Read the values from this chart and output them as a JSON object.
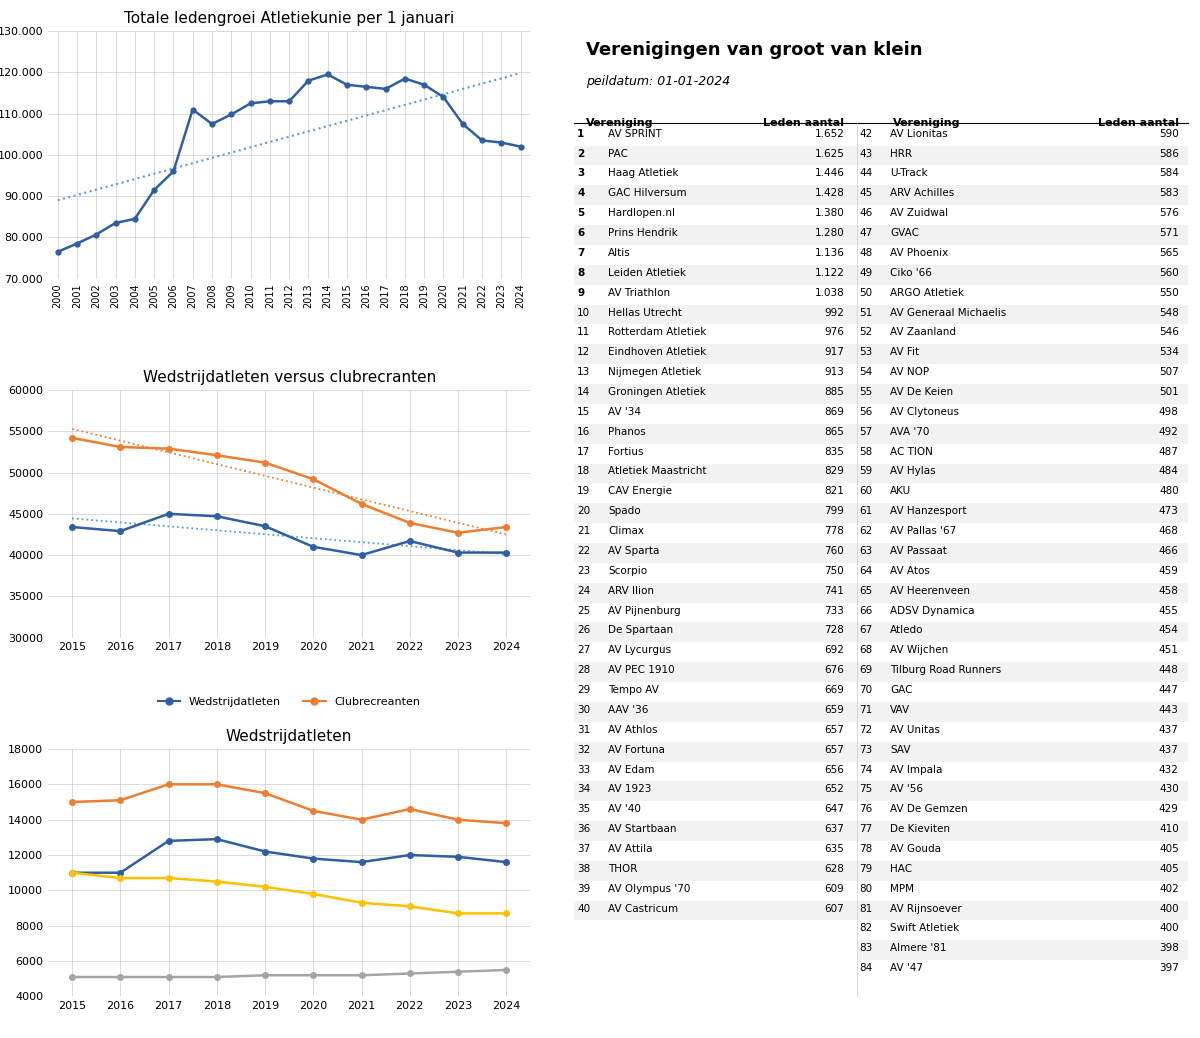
{
  "chart1_title": "Totale ledengroei Atletiekunie per 1 januari",
  "chart1_years": [
    2000,
    2001,
    2002,
    2003,
    2004,
    2005,
    2006,
    2007,
    2008,
    2009,
    2010,
    2011,
    2012,
    2013,
    2014,
    2015,
    2016,
    2017,
    2018,
    2019,
    2020,
    2021,
    2022,
    2023,
    2024
  ],
  "chart1_values": [
    76500,
    78500,
    80700,
    83500,
    84500,
    91500,
    96000,
    111000,
    107500,
    109800,
    112500,
    113000,
    113000,
    118000,
    119500,
    117000,
    116500,
    116000,
    118500,
    117000,
    114000,
    107500,
    103500,
    103000,
    102000
  ],
  "chart1_ylim": [
    70000,
    130000
  ],
  "chart1_yticks": [
    70000,
    80000,
    90000,
    100000,
    110000,
    120000,
    130000
  ],
  "chart1_color": "#2E5FA3",
  "chart1_trend_color": "#5B9BD5",
  "chart2_title": "Wedstrijdatleten versus clubrecranten",
  "chart2_years": [
    2015,
    2016,
    2017,
    2018,
    2019,
    2020,
    2021,
    2022,
    2023,
    2024
  ],
  "chart2_wedstrijd": [
    43400,
    42900,
    45000,
    44700,
    43500,
    41000,
    40000,
    41700,
    40300,
    40300
  ],
  "chart2_club": [
    54200,
    53100,
    52900,
    52100,
    51200,
    49200,
    46200,
    43900,
    42700,
    43400
  ],
  "chart2_ylim": [
    30000,
    60000
  ],
  "chart2_yticks": [
    30000,
    35000,
    40000,
    45000,
    50000,
    55000,
    60000
  ],
  "chart2_color_wedstrijd": "#2E5FA3",
  "chart2_color_club": "#ED7D31",
  "chart2_trend_color_wedstrijd": "#5B9BD5",
  "chart2_trend_color_club": "#ED7D31",
  "chart3_title": "Wedstrijdatleten",
  "chart3_years": [
    2015,
    2016,
    2017,
    2018,
    2019,
    2020,
    2021,
    2022,
    2023,
    2024
  ],
  "chart3_pupillen": [
    11000,
    11000,
    12800,
    12900,
    12200,
    11800,
    11600,
    12000,
    11900,
    11600
  ],
  "chart3_junioren": [
    15000,
    15100,
    16000,
    16000,
    15500,
    14500,
    14000,
    14600,
    14000,
    13800
  ],
  "chart3_senioren": [
    5100,
    5100,
    5100,
    5100,
    5200,
    5200,
    5200,
    5300,
    5400,
    5500
  ],
  "chart3_masters": [
    11000,
    10700,
    10700,
    10500,
    10200,
    9800,
    9300,
    9100,
    8700,
    8700
  ],
  "chart3_ylim": [
    4000,
    18000
  ],
  "chart3_yticks": [
    4000,
    6000,
    8000,
    10000,
    12000,
    14000,
    16000,
    18000
  ],
  "chart3_color_pupillen": "#2E5FA3",
  "chart3_color_junioren": "#ED7D31",
  "chart3_color_senioren": "#A5A5A5",
  "chart3_color_masters": "#FFC000",
  "table_title": "Verenigingen van groot van klein",
  "table_subtitle": "peildatum: 01-01-2024",
  "table_col1_num": [
    1,
    2,
    3,
    4,
    5,
    6,
    7,
    8,
    9,
    10,
    11,
    12,
    13,
    14,
    15,
    16,
    17,
    18,
    19,
    20,
    21,
    22,
    23,
    24,
    25,
    26,
    27,
    28,
    29,
    30,
    31,
    32,
    33,
    34,
    35,
    36,
    37,
    38,
    39,
    40
  ],
  "table_col1_name": [
    "AV SPRINT",
    "PAC",
    "Haag Atletiek",
    "GAC Hilversum",
    "Hardlopen.nl",
    "Prins Hendrik",
    "Altis",
    "Leiden Atletiek",
    "AV Triathlon",
    "Hellas Utrecht",
    "Rotterdam Atletiek",
    "Eindhoven Atletiek",
    "Nijmegen Atletiek",
    "Groningen Atletiek",
    "AV '34",
    "Phanos",
    "Fortius",
    "Atletiek Maastricht",
    "CAV Energie",
    "Spado",
    "Climax",
    "AV Sparta",
    "Scorpio",
    "ARV Ilion",
    "AV Pijnenburg",
    "De Spartaan",
    "AV Lycurgus",
    "AV PEC 1910",
    "Tempo AV",
    "AAV '36",
    "AV Athlos",
    "AV Fortuna",
    "AV Edam",
    "AV 1923",
    "AV '40",
    "AV Startbaan",
    "AV Attila",
    "THOR",
    "AV Olympus '70",
    "AV Castricum"
  ],
  "table_col1_val": [
    "1.652",
    "1.625",
    "1.446",
    "1.428",
    "1.380",
    "1.280",
    "1.136",
    "1.122",
    "1.038",
    "992",
    "976",
    "917",
    "913",
    "885",
    "869",
    "865",
    "835",
    "829",
    "821",
    "799",
    "778",
    "760",
    "750",
    "741",
    "733",
    "728",
    "692",
    "676",
    "669",
    "659",
    "657",
    "657",
    "656",
    "652",
    "647",
    "637",
    "635",
    "628",
    "609",
    "607"
  ],
  "table_col2_num": [
    42,
    43,
    44,
    45,
    46,
    47,
    48,
    49,
    50,
    51,
    52,
    53,
    54,
    55,
    56,
    57,
    58,
    59,
    60,
    61,
    62,
    63,
    64,
    65,
    66,
    67,
    68,
    69,
    70,
    71,
    72,
    73,
    74,
    75,
    76,
    77,
    78,
    79,
    80,
    81,
    82,
    83,
    84
  ],
  "table_col2_name": [
    "AV Lionitas",
    "HRR",
    "U-Track",
    "ARV Achilles",
    "AV Zuidwal",
    "GVAC",
    "AV Phoenix",
    "Ciko '66",
    "ARGO Atletiek",
    "AV Generaal Michaelis",
    "AV Zaanland",
    "AV Fit",
    "AV NOP",
    "AV De Keien",
    "AV Clytoneus",
    "AVA '70",
    "AC TION",
    "AV Hylas",
    "AKU",
    "AV Hanzesport",
    "AV Pallas '67",
    "AV Passaat",
    "AV Atos",
    "AV Heerenveen",
    "ADSV Dynamica",
    "Atledo",
    "AV Wijchen",
    "Tilburg Road Runners",
    "GAC",
    "VAV",
    "AV Unitas",
    "SAV",
    "AV Impala",
    "AV '56",
    "AV De Gemzen",
    "De Kieviten",
    "AV Gouda",
    "HAC",
    "MPM",
    "AV Rijnsoever",
    "Swift Atletiek",
    "Almere '81",
    "AV '47"
  ],
  "table_col2_val": [
    590,
    586,
    584,
    583,
    576,
    571,
    565,
    560,
    550,
    548,
    546,
    534,
    507,
    501,
    498,
    492,
    487,
    484,
    480,
    473,
    468,
    466,
    459,
    458,
    455,
    454,
    451,
    448,
    447,
    443,
    437,
    437,
    432,
    430,
    429,
    410,
    405,
    405,
    402,
    400,
    400,
    398,
    397
  ]
}
